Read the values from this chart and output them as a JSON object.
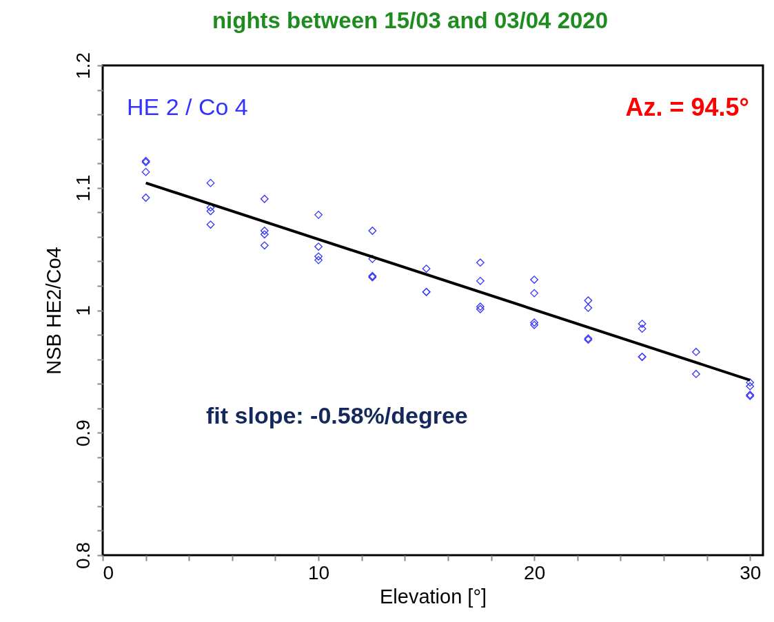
{
  "chart_data": {
    "type": "scatter",
    "title": "nights between 15/03 and 03/04  2020",
    "xlabel": "Elevation [°]",
    "ylabel": "NSB HE2/Co4",
    "xlim": [
      0,
      30.6
    ],
    "ylim": [
      0.8,
      1.2
    ],
    "xticks": [
      0,
      {
        "value": 2,
        "label": null
      },
      {
        "value": 4,
        "label": null
      },
      {
        "value": 6,
        "label": null
      },
      {
        "value": 8,
        "label": null
      },
      10,
      {
        "value": 12,
        "label": null
      },
      {
        "value": 14,
        "label": null
      },
      {
        "value": 16,
        "label": null
      },
      {
        "value": 18,
        "label": null
      },
      20,
      {
        "value": 22,
        "label": null
      },
      {
        "value": 24,
        "label": null
      },
      {
        "value": 26,
        "label": null
      },
      {
        "value": 28,
        "label": null
      },
      30
    ],
    "yticks": [
      0.8,
      {
        "value": 0.82,
        "label": null
      },
      {
        "value": 0.84,
        "label": null
      },
      {
        "value": 0.86,
        "label": null
      },
      {
        "value": 0.88,
        "label": null
      },
      0.9,
      {
        "value": 0.92,
        "label": null
      },
      {
        "value": 0.94,
        "label": null
      },
      {
        "value": 0.96,
        "label": null
      },
      {
        "value": 0.98,
        "label": null
      },
      1,
      {
        "value": 1.02,
        "label": null
      },
      {
        "value": 1.04,
        "label": null
      },
      {
        "value": 1.06,
        "label": null
      },
      {
        "value": 1.08,
        "label": null
      },
      1.1,
      {
        "value": 1.12,
        "label": null
      },
      {
        "value": 1.14,
        "label": null
      },
      {
        "value": 1.16,
        "label": null
      },
      {
        "value": 1.18,
        "label": null
      },
      1.2
    ],
    "marker": "diamond",
    "grid": false,
    "annotations": [
      "Az. = 94.5°",
      "fit slope: -0.58%/degree"
    ],
    "series": [
      {
        "name": "HE 2 / Co 4",
        "color": "#3333ff",
        "x": [
          2,
          2,
          2,
          2,
          5,
          5,
          5,
          5,
          7.5,
          7.5,
          7.5,
          7.5,
          10,
          10,
          10,
          10,
          12.5,
          12.5,
          12.5,
          12.5,
          15,
          15,
          15,
          17.5,
          17.5,
          17.5,
          17.5,
          20,
          20,
          20,
          20,
          22.5,
          22.5,
          22.5,
          22.5,
          25,
          25,
          25,
          25,
          27.5,
          27.5,
          30,
          30,
          30,
          30
        ],
        "values": [
          1.122,
          1.121,
          1.113,
          1.092,
          1.104,
          1.084,
          1.081,
          1.07,
          1.091,
          1.065,
          1.062,
          1.053,
          1.078,
          1.052,
          1.044,
          1.041,
          1.065,
          1.042,
          1.028,
          1.027,
          1.034,
          1.015,
          1.015,
          1.039,
          1.024,
          1.003,
          1.001,
          1.025,
          1.014,
          0.99,
          0.988,
          1.008,
          1.002,
          0.977,
          0.976,
          0.989,
          0.985,
          0.962,
          0.962,
          0.966,
          0.948,
          0.941,
          0.938,
          0.931,
          0.93
        ]
      },
      {
        "type": "line",
        "marker": "none",
        "color": "#000000",
        "x": [
          2,
          30
        ],
        "values": [
          1.104,
          0.943
        ]
      }
    ]
  }
}
